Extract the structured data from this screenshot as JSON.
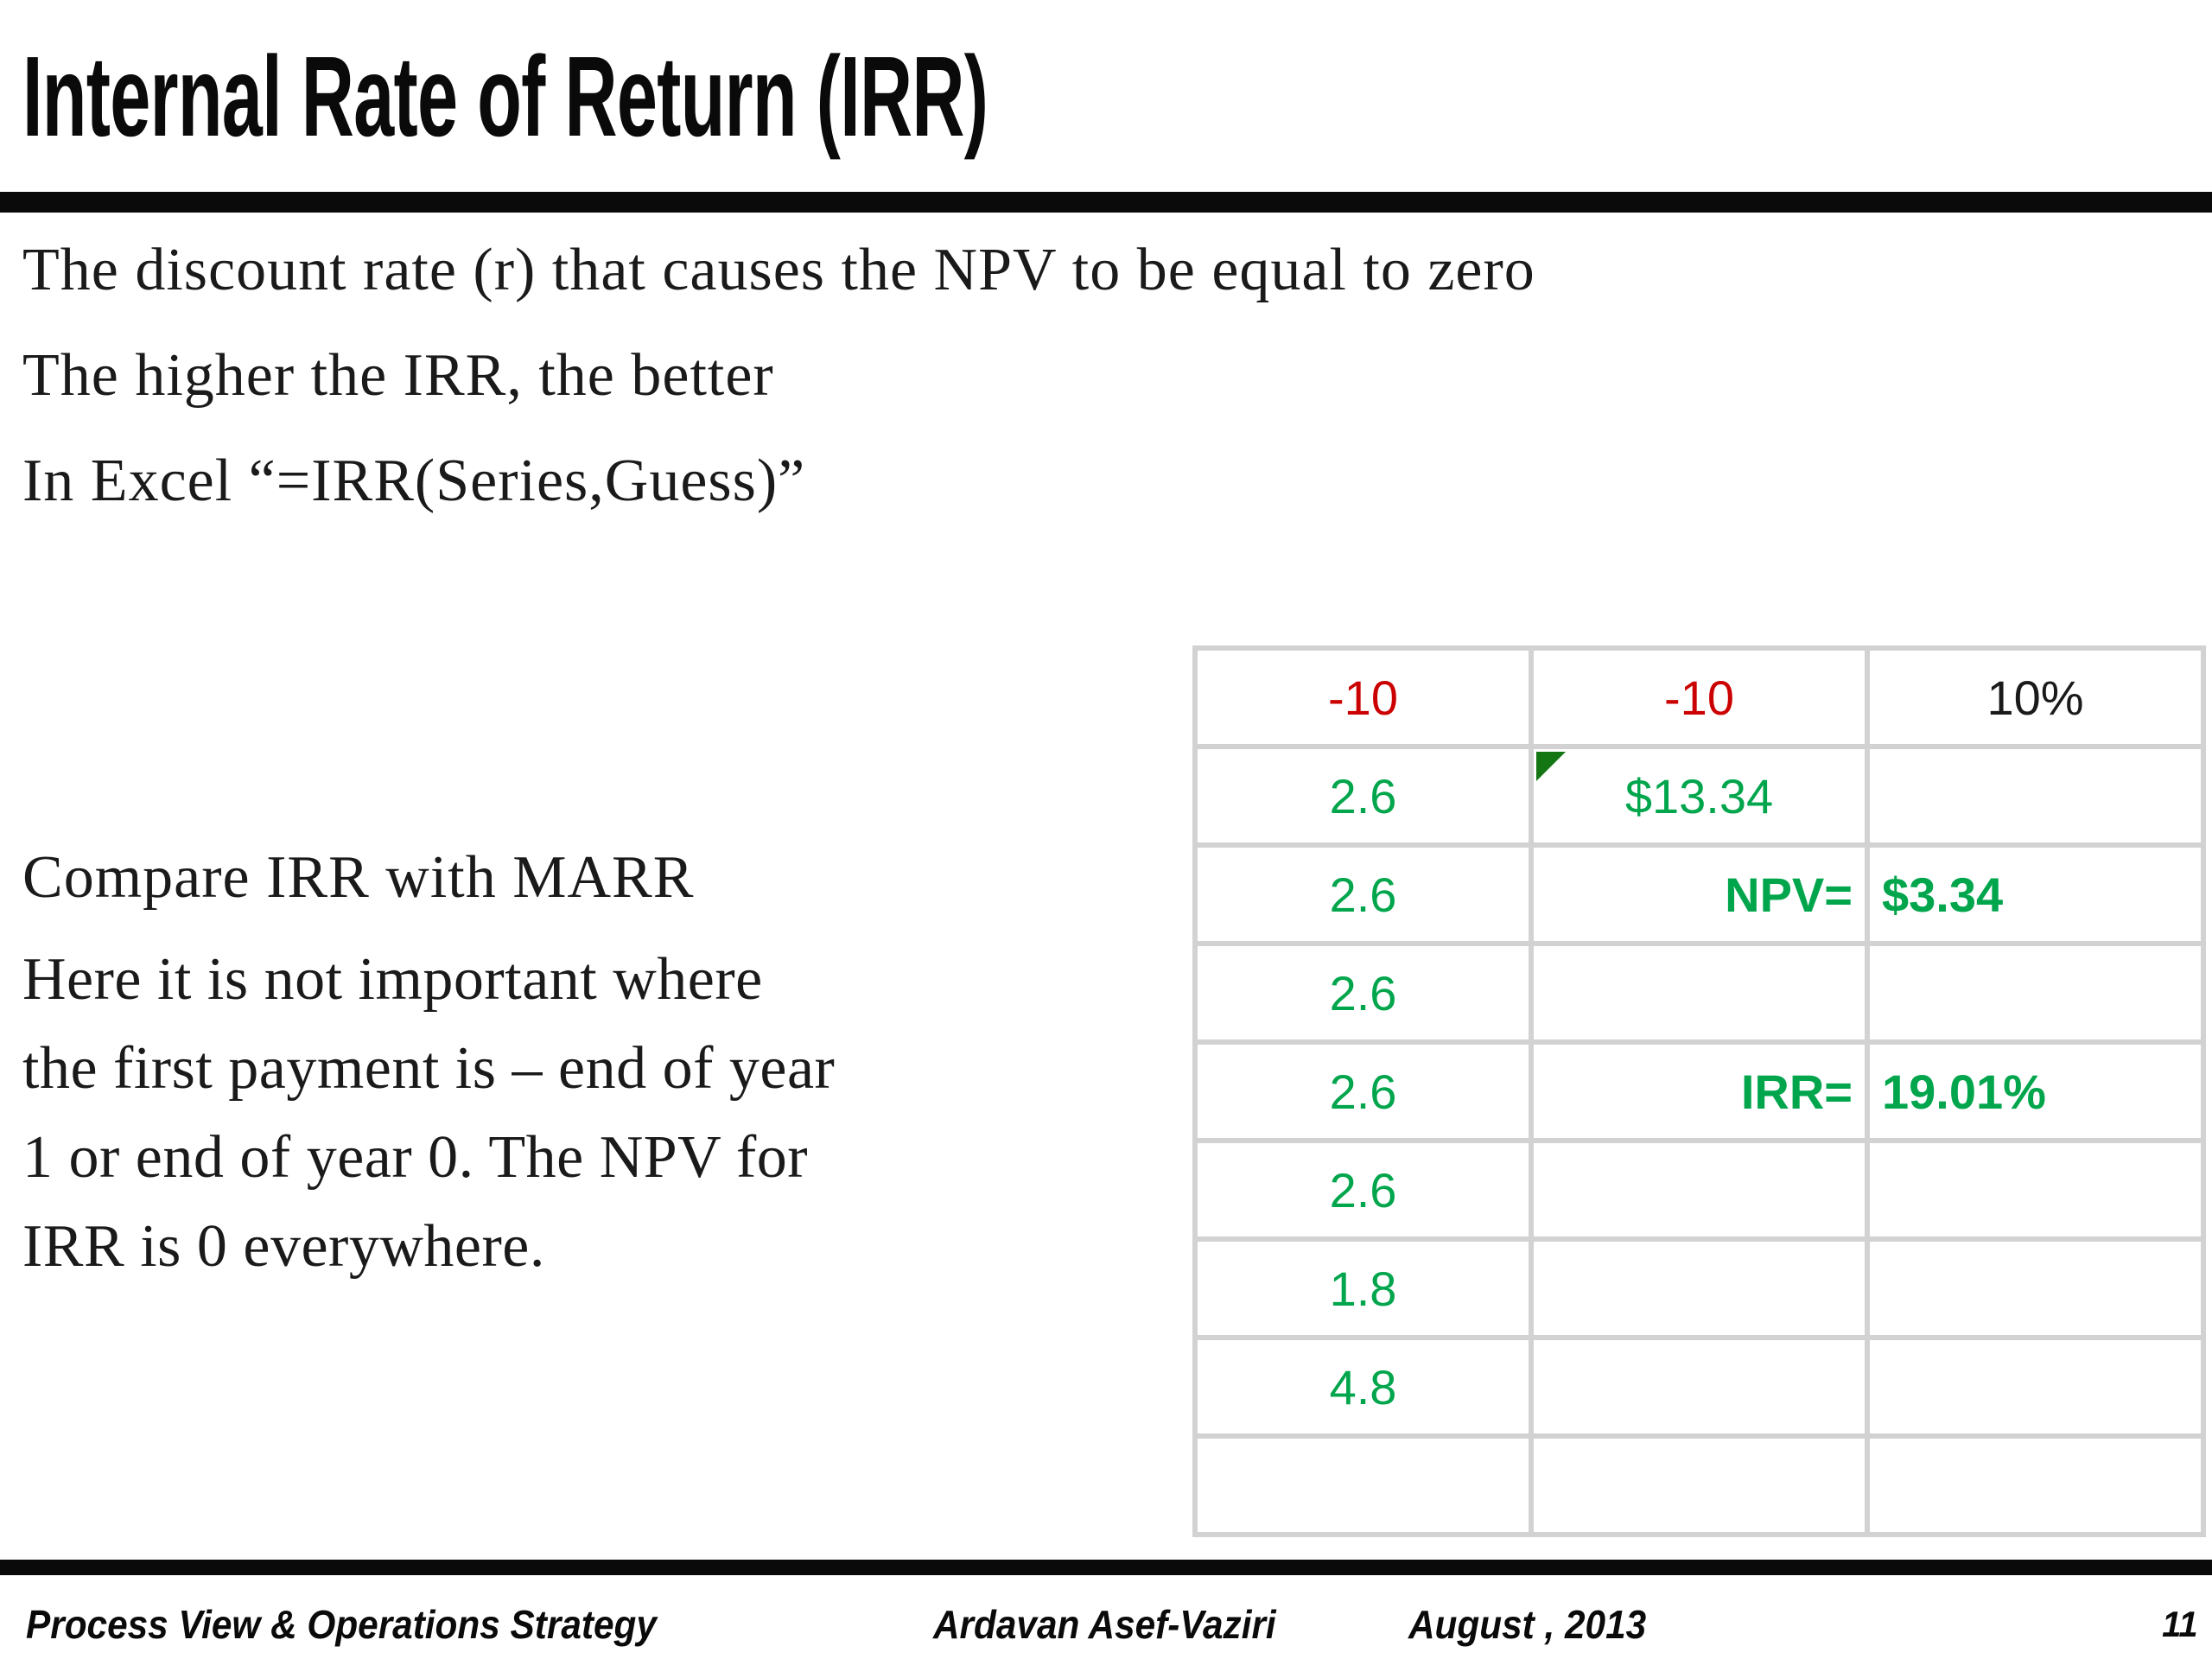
{
  "slide": {
    "title": "Internal Rate of Return (IRR)",
    "bullets": [
      "The discount rate (r) that causes the NPV to be equal to zero",
      "The higher the IRR, the better",
      "In Excel “=IRR(Series,Guess)”"
    ],
    "notes_heading": "Compare IRR with MARR",
    "notes_lines": [
      "Here it is not important where",
      "the first payment is – end of year",
      "1 or end of year 0. The NPV for",
      "IRR is 0 everywhere."
    ],
    "footer": {
      "course": "Process View & Operations Strategy",
      "author": "Ardavan Asef-Vaziri",
      "date": "August , 2013",
      "page": "11"
    }
  },
  "colors": {
    "green": "#00A54C",
    "dark_green": "#137613",
    "red": "#CB0000",
    "grid": "#D2D2D2"
  },
  "spreadsheet": {
    "columns": 3,
    "rows": [
      [
        {
          "t": "-10",
          "c": "red"
        },
        {
          "t": "-10",
          "c": "red"
        },
        {
          "t": "10%"
        }
      ],
      [
        {
          "t": "2.6",
          "c": "green"
        },
        {
          "t": "$13.34",
          "c": "green",
          "flag": true
        },
        {
          "t": ""
        }
      ],
      [
        {
          "t": "2.6",
          "c": "green"
        },
        {
          "t": "NPV=",
          "c": "green",
          "b": true,
          "a": "right"
        },
        {
          "t": "$3.34",
          "c": "green",
          "b": true,
          "a": "left"
        }
      ],
      [
        {
          "t": "2.6",
          "c": "green"
        },
        {
          "t": ""
        },
        {
          "t": ""
        }
      ],
      [
        {
          "t": "2.6",
          "c": "green"
        },
        {
          "t": "IRR=",
          "c": "green",
          "b": true,
          "a": "right"
        },
        {
          "t": "19.01%",
          "c": "green",
          "b": true,
          "a": "left"
        }
      ],
      [
        {
          "t": "2.6",
          "c": "green"
        },
        {
          "t": ""
        },
        {
          "t": ""
        }
      ],
      [
        {
          "t": "1.8",
          "c": "green"
        },
        {
          "t": ""
        },
        {
          "t": ""
        }
      ],
      [
        {
          "t": "4.8",
          "c": "green"
        },
        {
          "t": ""
        },
        {
          "t": ""
        }
      ],
      [
        {
          "t": ""
        },
        {
          "t": ""
        },
        {
          "t": ""
        }
      ]
    ]
  }
}
